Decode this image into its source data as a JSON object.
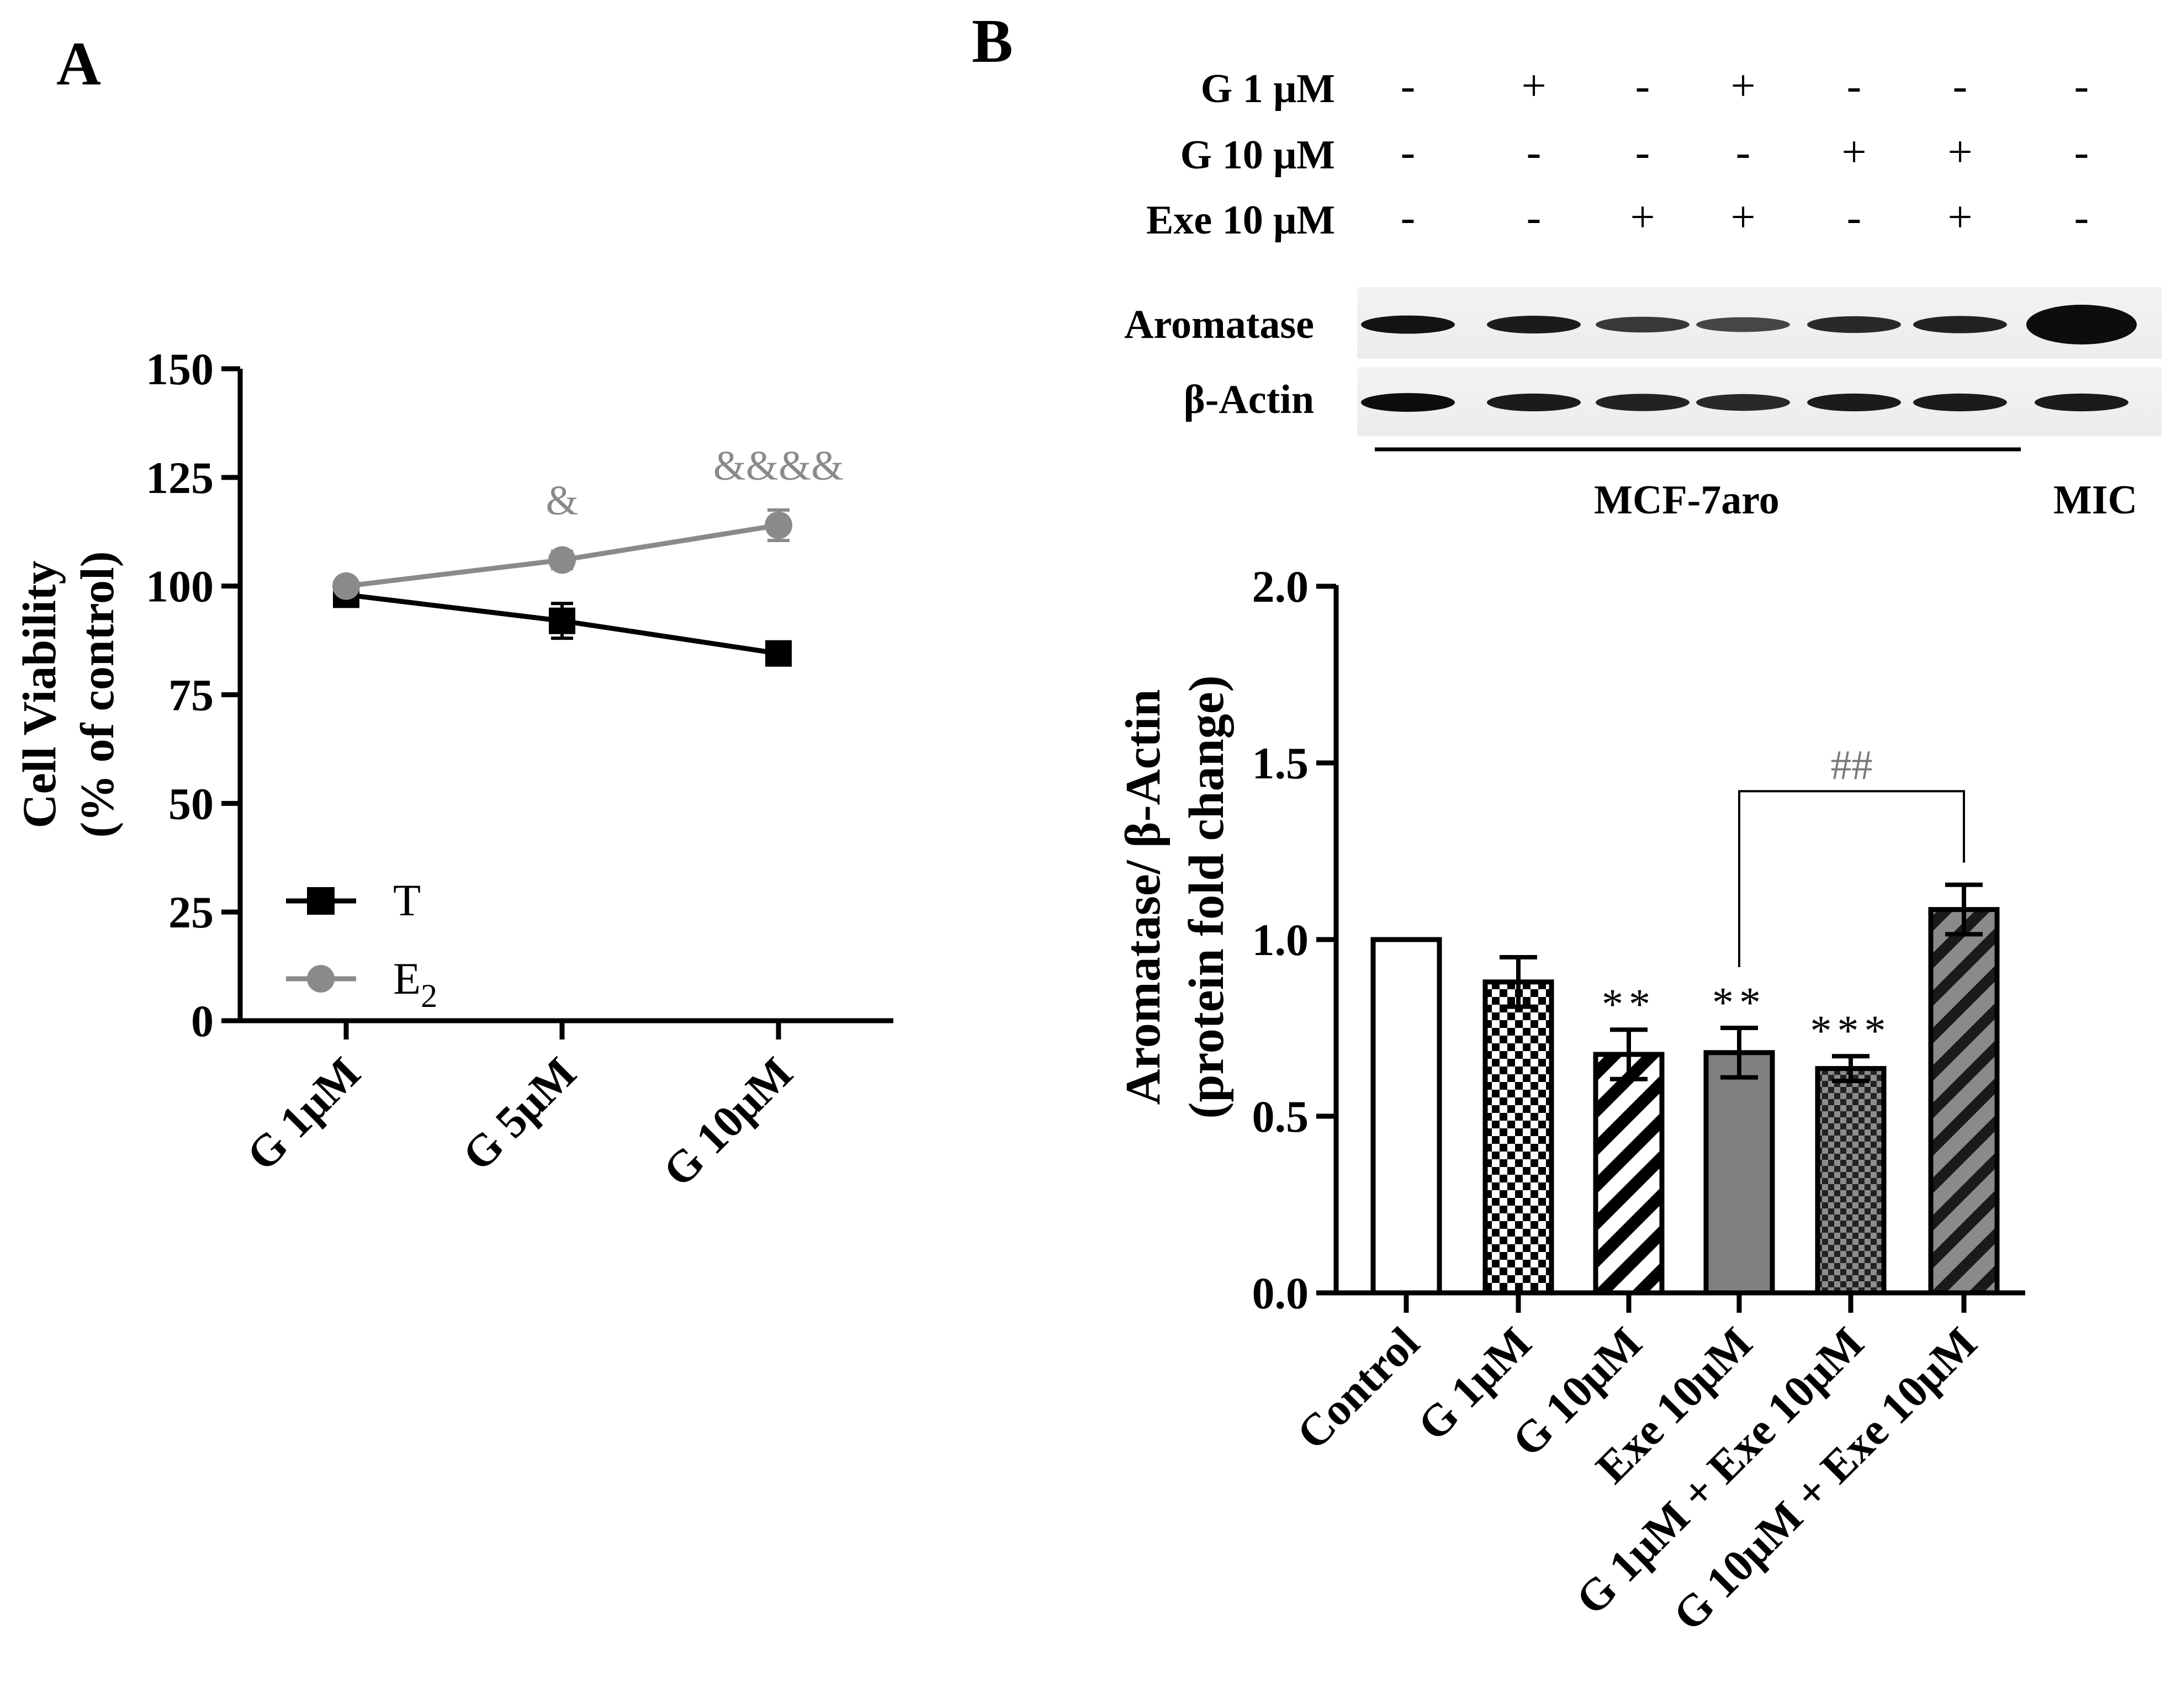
{
  "panel_labels": [
    "A",
    "B"
  ],
  "chart_data": [
    {
      "type": "line",
      "panel": "A",
      "title": "",
      "categories": [
        "G 1μM",
        "G 5μM",
        "G 10μM"
      ],
      "xlabel": "",
      "ylabel_line1": "Cell Viability",
      "ylabel_line2": "(% of control)",
      "ylim": [
        0,
        150
      ],
      "yticks": [
        "0",
        "25",
        "50",
        "75",
        "100",
        "125",
        "150"
      ],
      "series": [
        {
          "name": "T",
          "marker": "square",
          "color": "#000000",
          "values": [
            98,
            92,
            84.5
          ],
          "errors": [
            1.5,
            4,
            1.5
          ]
        },
        {
          "name": "E",
          "name_sub": "2",
          "marker": "circle",
          "color": "#8a8a8a",
          "values": [
            100,
            106,
            114
          ],
          "errors": [
            1,
            2,
            3.5
          ]
        }
      ],
      "annotations": [
        {
          "category_index": 1,
          "text": "&",
          "value": 120
        },
        {
          "category_index": 2,
          "text": "&&&&",
          "value": 128
        }
      ]
    },
    {
      "type": "bar",
      "panel": "B",
      "title": "",
      "categories": [
        "Control",
        "G 1μM",
        "G 10μM",
        "Exe 10μM",
        "G 1μM + Exe 10μM",
        "G 10μM + Exe 10μM"
      ],
      "values": [
        1.0,
        0.88,
        0.675,
        0.68,
        0.635,
        1.085
      ],
      "errors": [
        0,
        0.07,
        0.07,
        0.07,
        0.035,
        0.07
      ],
      "fills": [
        "white",
        "checker",
        "diag-white",
        "gray",
        "checker-gray",
        "diag-gray"
      ],
      "significance": [
        "",
        "",
        "**",
        "**",
        "***",
        ""
      ],
      "bracket": {
        "from_index": 3,
        "to_index": 5,
        "text": "##",
        "value": 1.42
      },
      "xlabel": "",
      "ylabel_line1": "Aromatase/ β-Actin",
      "ylabel_line2": "(protein fold change)",
      "ylim": [
        0,
        2.0
      ],
      "yticks": [
        "0.0",
        "0.5",
        "1.0",
        "1.5",
        "2.0"
      ]
    }
  ],
  "blot": {
    "treatments": [
      {
        "label": "G 1 μM",
        "signs": [
          "-",
          "+",
          "-",
          "+",
          "-",
          "-",
          "-"
        ]
      },
      {
        "label": "G 10 μM",
        "signs": [
          "-",
          "-",
          "-",
          "-",
          "+",
          "+",
          "-"
        ]
      },
      {
        "label": "Exe 10 μM",
        "signs": [
          "-",
          "-",
          "+",
          "+",
          "-",
          "+",
          "-"
        ]
      }
    ],
    "rows": [
      {
        "label": "Aromatase",
        "intensity": [
          0.95,
          0.9,
          0.7,
          0.6,
          0.8,
          0.85,
          1.0
        ]
      },
      {
        "label": "β-Actin",
        "intensity": [
          1.0,
          0.9,
          0.85,
          0.8,
          0.9,
          0.9,
          0.9
        ]
      }
    ],
    "groups": [
      {
        "label": "MCF-7aro"
      },
      {
        "label": "MIC"
      }
    ]
  }
}
